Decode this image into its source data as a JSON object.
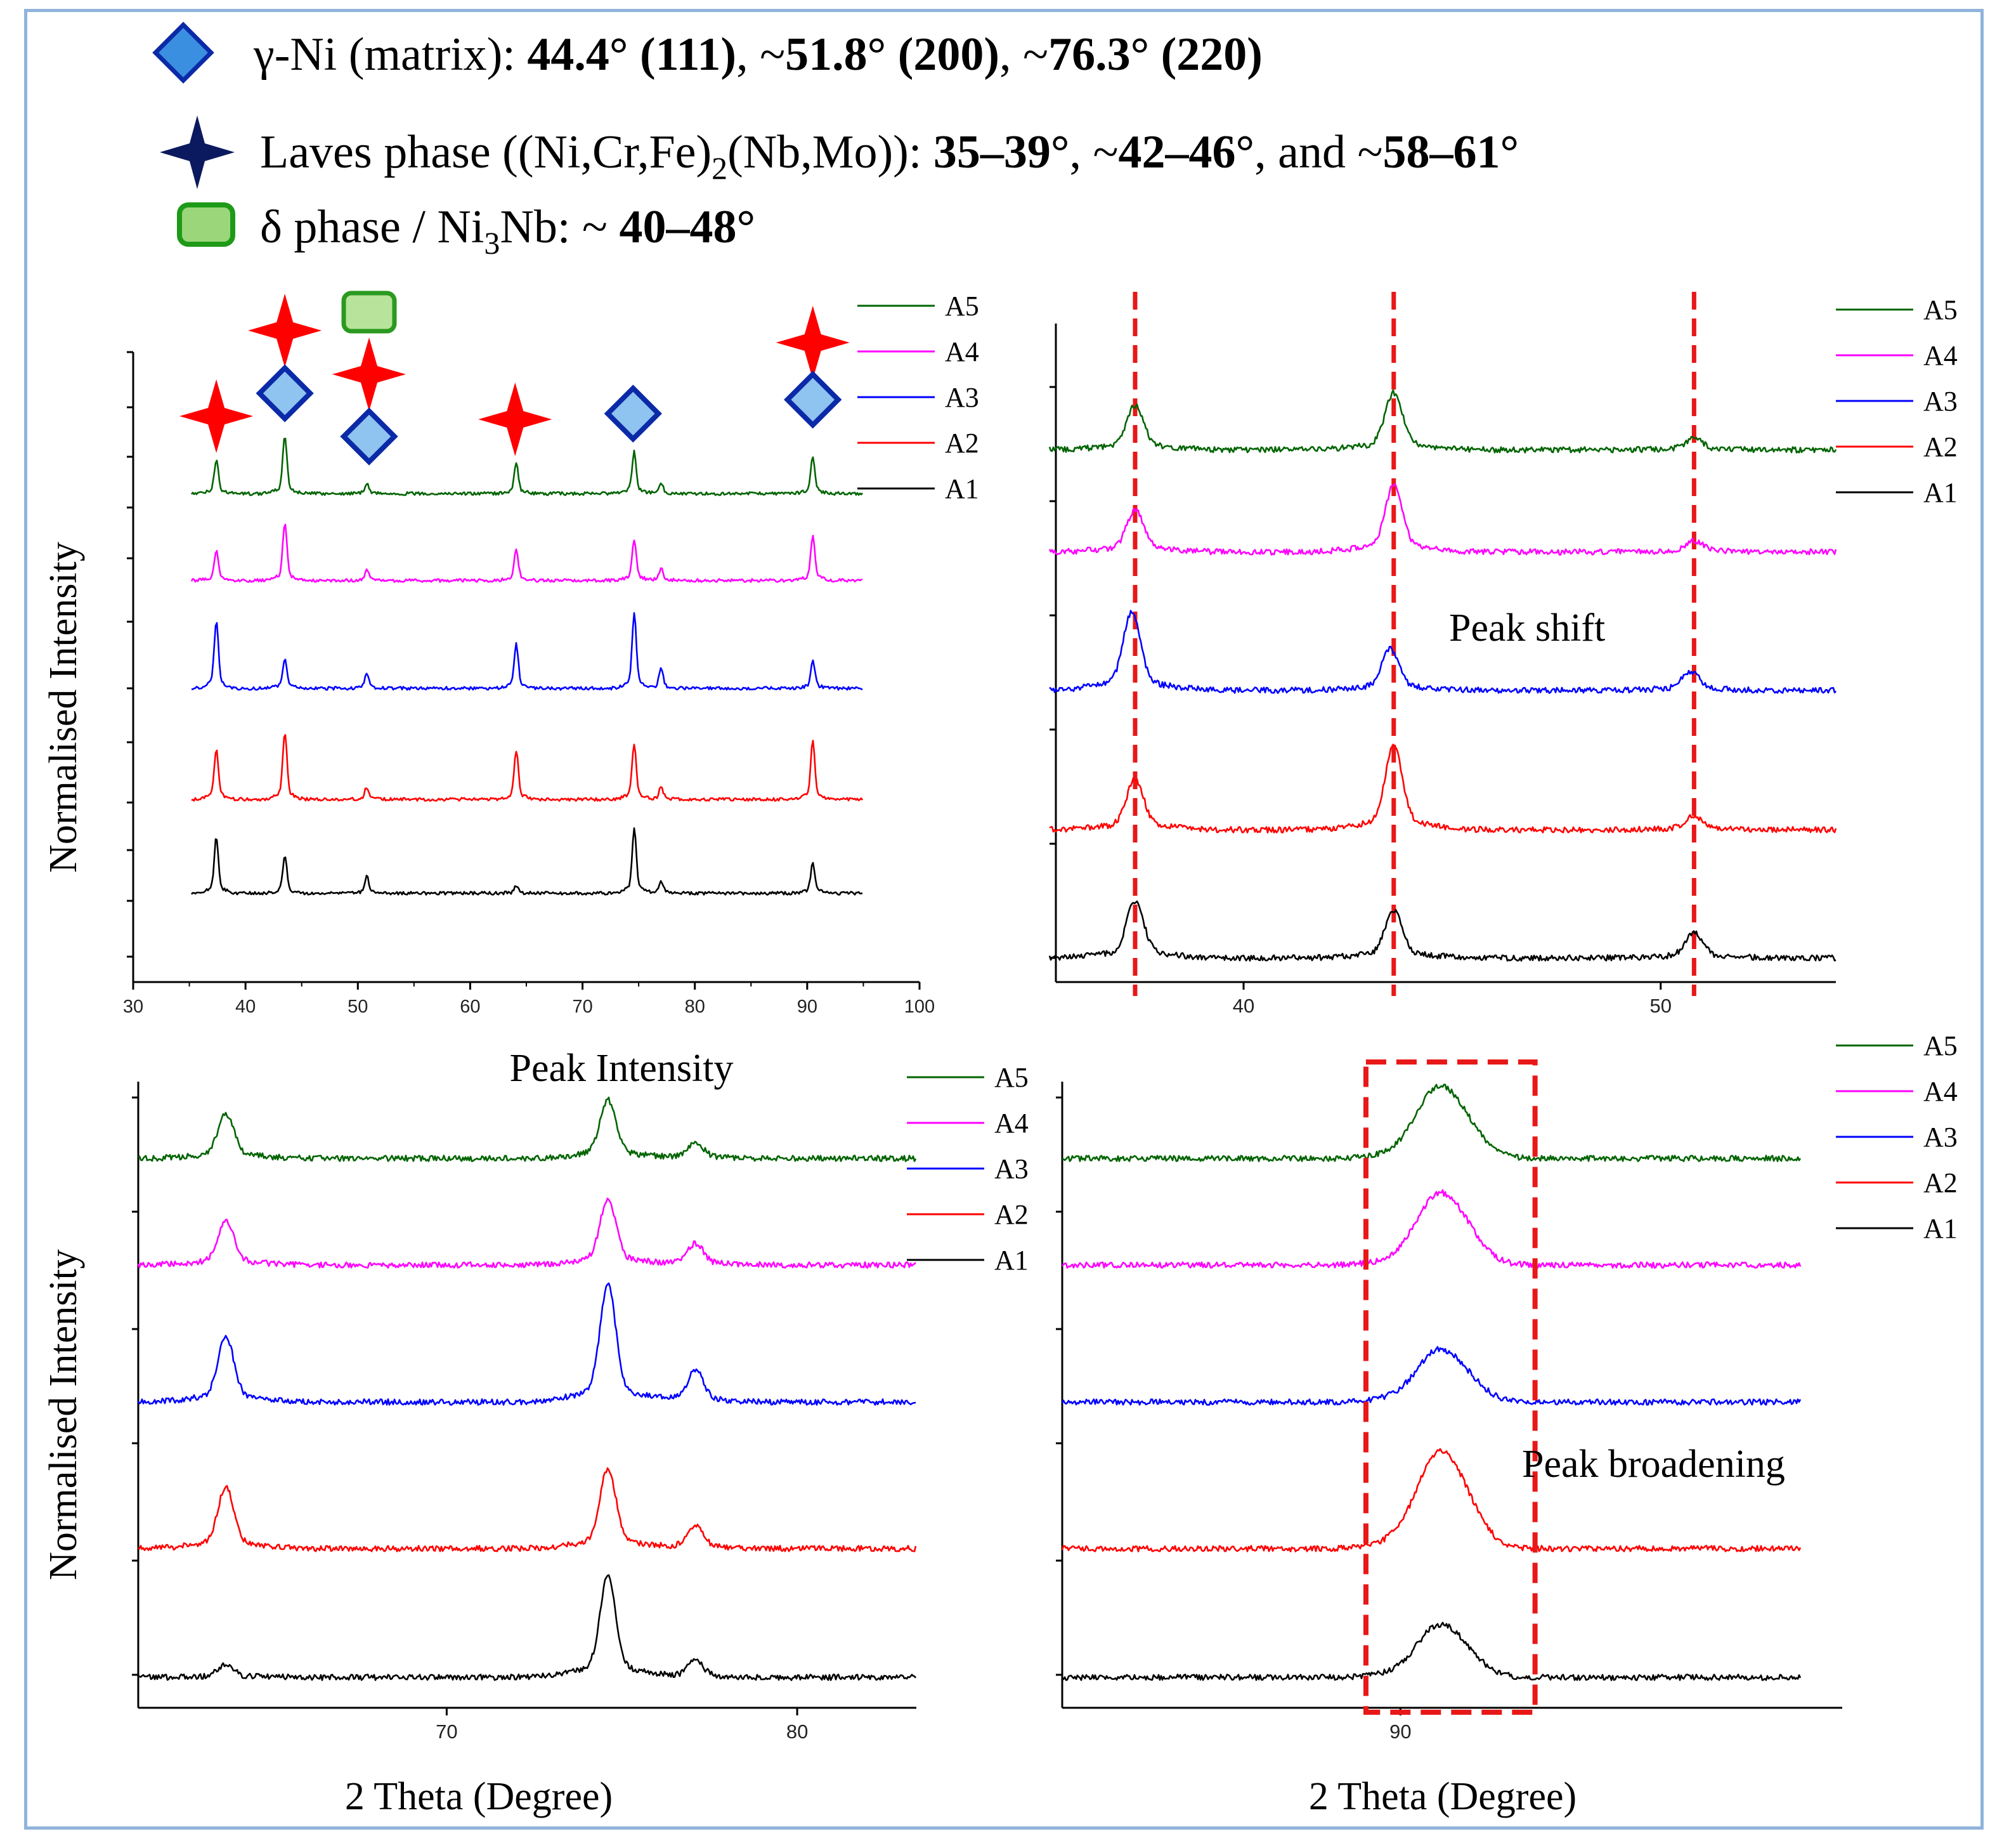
{
  "legend": {
    "gamma": {
      "label": "γ-Ni (matrix): ",
      "bold1": "44.4° (111)",
      "mid1": ", ~",
      "bold2": "51.8° (200)",
      "mid2": ", ~",
      "bold3": "76.3° (220)",
      "color": "#3b8fe0"
    },
    "laves": {
      "label_pre": "Laves phase ((Ni,Cr,Fe)",
      "sub1": "2",
      "label_mid": "(Nb,Mo)): ",
      "bold1": "35–39°",
      "mid1": ", ~",
      "bold2": "42–46°",
      "mid2": ", and ~",
      "bold3": "58–61°",
      "color": "#0b1a5e"
    },
    "delta": {
      "label_pre": "δ phase / Ni",
      "sub1": "3",
      "label_mid": "Nb: ~ ",
      "bold1": "40–48°",
      "color": "#9bd67a"
    }
  },
  "colors": {
    "A1": "#000000",
    "A2": "#ff0000",
    "A3": "#0000ff",
    "A4": "#ff00ff",
    "A5": "#006400",
    "marker_red": "#ff0000",
    "diamond_fill": "#8fc3f0",
    "diamond_edge": "#0b2aa8",
    "box_fill": "#b7e39a",
    "box_edge": "#2a9a20",
    "dash": "#e81818"
  },
  "annotations": {
    "tl_xlabel": "Peak Intensity",
    "tr_note": "Peak shift",
    "br_note": "Peak broadening",
    "ylabel_top": "Normalised Intensity",
    "ylabel_bottom": "Normalised Intensity",
    "xlabel_bl": "2 Theta (Degree)",
    "xlabel_br": "2 Theta (Degree)"
  },
  "chart_data": [
    {
      "id": "tl",
      "type": "line",
      "title": "",
      "xlabel": "Peak Intensity",
      "ylabel": "Normalised Intensity",
      "xlim": [
        30,
        100
      ],
      "xticks": [
        30,
        40,
        50,
        60,
        70,
        80,
        90,
        100
      ],
      "series_names": [
        "A5",
        "A4",
        "A3",
        "A2",
        "A1"
      ],
      "peaks_x": [
        37.4,
        43.5,
        50.8,
        64.1,
        74.6,
        77.0,
        90.5
      ],
      "peak_heights": {
        "A5": [
          0.5,
          0.85,
          0.15,
          0.45,
          0.62,
          0.15,
          0.55
        ],
        "A4": [
          0.45,
          0.85,
          0.15,
          0.45,
          0.6,
          0.18,
          0.65
        ],
        "A3": [
          1.0,
          0.42,
          0.22,
          0.65,
          1.1,
          0.3,
          0.42
        ],
        "A2": [
          0.75,
          1.0,
          0.18,
          0.72,
          0.82,
          0.18,
          0.85
        ],
        "A1": [
          0.82,
          0.55,
          0.25,
          0.1,
          0.95,
          0.18,
          0.45
        ]
      },
      "markers": [
        {
          "type": "star",
          "x": 37.4
        },
        {
          "type": "star",
          "x": 43.5
        },
        {
          "type": "diamond",
          "x": 43.5
        },
        {
          "type": "box",
          "x": 51.0
        },
        {
          "type": "star",
          "x": 51.0
        },
        {
          "type": "diamond",
          "x": 51.0
        },
        {
          "type": "star",
          "x": 64.0
        },
        {
          "type": "diamond",
          "x": 74.5
        },
        {
          "type": "star",
          "x": 90.5
        },
        {
          "type": "diamond",
          "x": 90.5
        }
      ]
    },
    {
      "id": "tr",
      "type": "line",
      "title": "",
      "xlabel": "",
      "ylabel": "",
      "xlim": [
        35.5,
        54.2
      ],
      "xticks": [
        40,
        50
      ],
      "series_names": [
        "A5",
        "A4",
        "A3",
        "A2",
        "A1"
      ],
      "peaks_x": [
        37.4,
        43.6,
        50.8
      ],
      "peak_heights": {
        "A5": [
          0.48,
          0.62,
          0.12
        ],
        "A4": [
          0.45,
          0.72,
          0.12
        ],
        "A3": [
          0.85,
          0.45,
          0.2
        ],
        "A2": [
          0.55,
          0.92,
          0.15
        ],
        "A1": [
          0.62,
          0.52,
          0.28
        ]
      },
      "dashed_lines_x": [
        37.4,
        43.6,
        50.8
      ],
      "note": "Peak shift"
    },
    {
      "id": "bl",
      "type": "line",
      "title": "",
      "xlabel": "2 Theta (Degree)",
      "ylabel": "Normalised Intensity",
      "xlim": [
        61.2,
        83.4
      ],
      "xticks": [
        70,
        80
      ],
      "series_names": [
        "A5",
        "A4",
        "A3",
        "A2",
        "A1"
      ],
      "peaks_x": [
        63.7,
        74.6,
        77.1
      ],
      "peak_heights": {
        "A5": [
          0.42,
          0.55,
          0.15
        ],
        "A4": [
          0.42,
          0.62,
          0.2
        ],
        "A3": [
          0.62,
          1.1,
          0.3
        ],
        "A2": [
          0.58,
          0.75,
          0.22
        ],
        "A1": [
          0.12,
          0.95,
          0.15
        ]
      }
    },
    {
      "id": "br",
      "type": "line",
      "title": "",
      "xlabel": "2 Theta (Degree)",
      "ylabel": "",
      "xlim": [
        80.2,
        102.8
      ],
      "xticks": [
        90
      ],
      "series_names": [
        "A5",
        "A4",
        "A3",
        "A2",
        "A1"
      ],
      "peaks_x": [
        91.5
      ],
      "peak_heights": {
        "A5": [
          0.52
        ],
        "A4": [
          0.52
        ],
        "A3": [
          0.38
        ],
        "A2": [
          0.7
        ],
        "A1": [
          0.38
        ]
      },
      "box_x": [
        89.0,
        93.9
      ],
      "note": "Peak broadening"
    }
  ]
}
